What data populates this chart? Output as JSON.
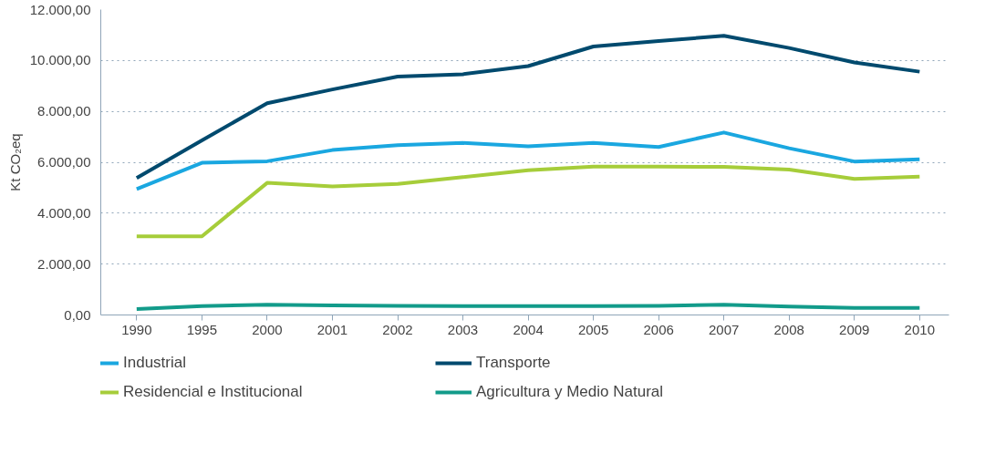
{
  "chart_data": {
    "type": "line",
    "ylabel": "Kt CO₂eq",
    "categories": [
      "1990",
      "1995",
      "2000",
      "2001",
      "2002",
      "2003",
      "2004",
      "2005",
      "2006",
      "2007",
      "2008",
      "2009",
      "2010"
    ],
    "series": [
      {
        "name": "Industrial",
        "color": "#1aa7e0",
        "values": [
          4950,
          5980,
          6040,
          6480,
          6670,
          6760,
          6630,
          6760,
          6600,
          7170,
          6550,
          6030,
          6120
        ]
      },
      {
        "name": "Transporte",
        "color": "#004a6e",
        "values": [
          5380,
          6860,
          8320,
          8860,
          9370,
          9460,
          9780,
          10550,
          10760,
          10970,
          10490,
          9920,
          9560
        ]
      },
      {
        "name": "Residencial e Institucional",
        "color": "#a6cd3a",
        "values": [
          3090,
          3090,
          5190,
          5050,
          5150,
          5420,
          5690,
          5830,
          5830,
          5820,
          5710,
          5350,
          5440
        ]
      },
      {
        "name": "Agricultura y Medio Natural",
        "color": "#129b8a",
        "values": [
          230,
          350,
          400,
          380,
          360,
          350,
          350,
          350,
          360,
          400,
          330,
          280,
          280
        ]
      }
    ],
    "ylim": [
      0,
      12000
    ],
    "yticks": [
      {
        "value": 0,
        "label": "0,00"
      },
      {
        "value": 2000,
        "label": "2.000,00"
      },
      {
        "value": 4000,
        "label": "4.000,00"
      },
      {
        "value": 6000,
        "label": "6.000,00"
      },
      {
        "value": 8000,
        "label": "8.000,00"
      },
      {
        "value": 10000,
        "label": "10.000,00"
      },
      {
        "value": 12000,
        "label": "12.000,00"
      }
    ],
    "grid": "y",
    "legend": "bottom",
    "marker": "none",
    "line_style": "solid"
  }
}
